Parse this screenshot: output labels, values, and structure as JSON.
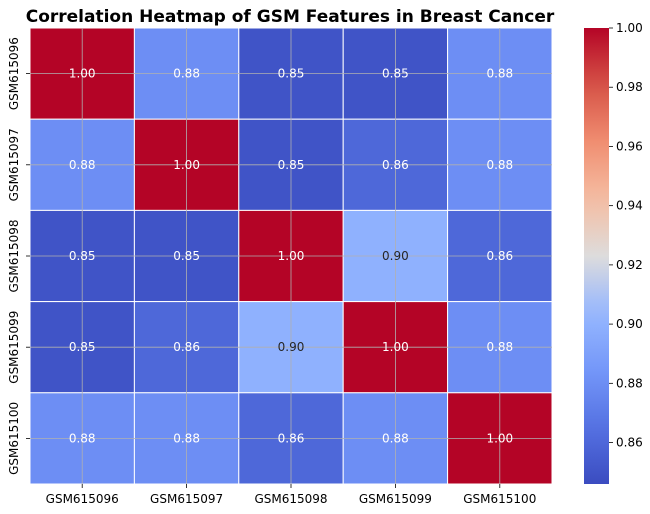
{
  "chart_data": {
    "type": "heatmap",
    "title": "Correlation Heatmap of GSM Features in Breast Cancer",
    "xlabel": "",
    "ylabel": "",
    "x_categories": [
      "GSM615096",
      "GSM615097",
      "GSM615098",
      "GSM615099",
      "GSM615100"
    ],
    "y_categories": [
      "GSM615096",
      "GSM615097",
      "GSM615098",
      "GSM615099",
      "GSM615100"
    ],
    "values": [
      [
        1.0,
        0.88,
        0.85,
        0.85,
        0.88
      ],
      [
        0.88,
        1.0,
        0.85,
        0.86,
        0.88
      ],
      [
        0.85,
        0.85,
        1.0,
        0.9,
        0.86
      ],
      [
        0.85,
        0.86,
        0.9,
        1.0,
        0.88
      ],
      [
        0.88,
        0.88,
        0.86,
        0.88,
        1.0
      ]
    ],
    "value_format": "0.00",
    "colormap": "coolwarm",
    "color_range": [
      0.846,
      1.0
    ],
    "colorbar_ticks": [
      0.86,
      0.88,
      0.9,
      0.92,
      0.94,
      0.96,
      0.98,
      1.0
    ],
    "colorbar_tick_labels": [
      "0.86",
      "0.88",
      "0.90",
      "0.92",
      "0.94",
      "0.96",
      "0.98",
      "1.00"
    ],
    "grid": true,
    "colors": {
      "cold": "#3b4cc0",
      "mid": "#dddcdc",
      "warm": "#b40426",
      "grid": "#b0b0b0"
    }
  }
}
